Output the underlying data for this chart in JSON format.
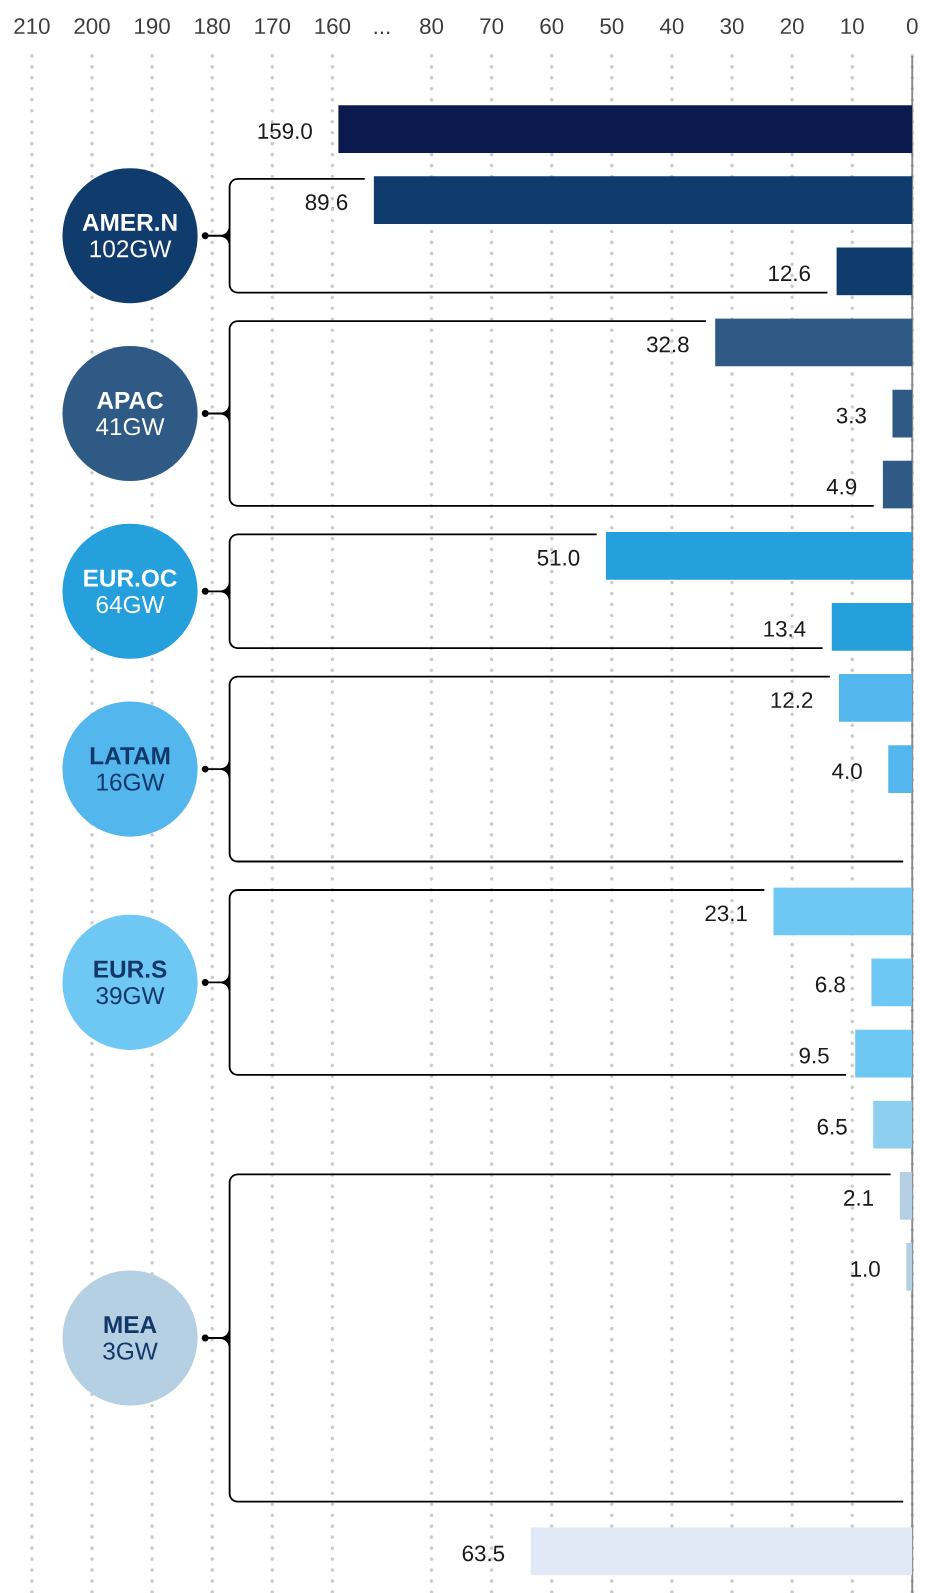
{
  "chart_data": {
    "type": "bar",
    "orientation": "horizontal",
    "categories": [
      null,
      null,
      null,
      null,
      null,
      null,
      null,
      null,
      null,
      null,
      null,
      null,
      null,
      null,
      null,
      null,
      null,
      null,
      null,
      null,
      null
    ],
    "series": [
      {
        "axis": "x2",
        "color": "#0b1a4e",
        "values": [
          159.0,
          null,
          null,
          null,
          null,
          null,
          null,
          null,
          null,
          null,
          null,
          null,
          null,
          null,
          null,
          null,
          null,
          null,
          null,
          null,
          null
        ],
        "value_labels": [
          "159.0",
          null,
          null,
          null,
          null,
          null,
          null,
          null,
          null,
          null,
          null,
          null,
          null,
          null,
          null,
          null,
          null,
          null,
          null,
          null,
          null
        ]
      },
      {
        "color": "#0f3b6d",
        "values": [
          null,
          89.6,
          12.6,
          null,
          null,
          null,
          null,
          null,
          null,
          null,
          null,
          null,
          null,
          null,
          null,
          null,
          null,
          null,
          null,
          null,
          null
        ],
        "value_labels": [
          null,
          "89.6",
          "12.6",
          null,
          null,
          null,
          null,
          null,
          null,
          null,
          null,
          null,
          null,
          null,
          null,
          null,
          null,
          null,
          null,
          null,
          null
        ]
      },
      {
        "color": "#2e5a85",
        "values": [
          null,
          null,
          null,
          32.8,
          3.3,
          4.9,
          null,
          null,
          null,
          null,
          null,
          null,
          null,
          null,
          null,
          null,
          null,
          null,
          null,
          null,
          null
        ],
        "value_labels": [
          null,
          null,
          null,
          "32.8",
          "3.3",
          "4.9",
          null,
          null,
          null,
          null,
          null,
          null,
          null,
          null,
          null,
          null,
          null,
          null,
          null,
          null,
          null
        ]
      },
      {
        "color": "#25a0dd",
        "values": [
          null,
          null,
          null,
          null,
          null,
          null,
          51.0,
          13.4,
          null,
          null,
          null,
          null,
          null,
          null,
          null,
          null,
          null,
          null,
          null,
          null,
          null
        ],
        "value_labels": [
          null,
          null,
          null,
          null,
          null,
          null,
          "51.0",
          "13.4",
          null,
          null,
          null,
          null,
          null,
          null,
          null,
          null,
          null,
          null,
          null,
          null,
          null
        ]
      },
      {
        "color": "#53b6ec",
        "values": [
          null,
          null,
          null,
          null,
          null,
          null,
          null,
          null,
          12.2,
          4.0,
          null,
          null,
          null,
          null,
          null,
          null,
          null,
          null,
          null,
          null,
          null
        ],
        "value_labels": [
          null,
          null,
          null,
          null,
          null,
          null,
          null,
          null,
          "12.2",
          "4.0",
          null,
          null,
          null,
          null,
          null,
          null,
          null,
          null,
          null,
          null,
          null
        ]
      },
      {
        "color": "#6ec8f3",
        "values": [
          null,
          null,
          null,
          null,
          null,
          null,
          null,
          null,
          null,
          null,
          null,
          23.1,
          6.8,
          9.5,
          null,
          null,
          null,
          null,
          null,
          null,
          null
        ],
        "value_labels": [
          null,
          null,
          null,
          null,
          null,
          null,
          null,
          null,
          null,
          null,
          null,
          "23.1",
          "6.8",
          "9.5",
          null,
          null,
          null,
          null,
          null,
          null,
          null
        ]
      },
      {
        "color": "#8ecff0",
        "values": [
          null,
          null,
          null,
          null,
          null,
          null,
          null,
          null,
          null,
          null,
          null,
          null,
          null,
          null,
          6.5,
          null,
          null,
          null,
          null,
          null,
          null
        ],
        "value_labels": [
          null,
          null,
          null,
          null,
          null,
          null,
          null,
          null,
          null,
          null,
          null,
          null,
          null,
          null,
          "6.5",
          null,
          null,
          null,
          null,
          null,
          null
        ]
      },
      {
        "color": "#b5cfe3",
        "values": [
          null,
          null,
          null,
          null,
          null,
          null,
          null,
          null,
          null,
          null,
          null,
          null,
          null,
          null,
          null,
          2.1,
          1.0,
          null,
          null,
          null,
          null
        ],
        "value_labels": [
          null,
          null,
          null,
          null,
          null,
          null,
          null,
          null,
          null,
          null,
          null,
          null,
          null,
          null,
          null,
          "2.1",
          "1.0",
          null,
          null,
          null,
          null
        ]
      },
      {
        "color": "#e1e9f6",
        "values": [
          null,
          null,
          null,
          null,
          null,
          null,
          null,
          null,
          null,
          null,
          null,
          null,
          null,
          null,
          null,
          null,
          null,
          null,
          null,
          null,
          63.5
        ],
        "value_labels": [
          null,
          null,
          null,
          null,
          null,
          null,
          null,
          null,
          null,
          null,
          null,
          null,
          null,
          null,
          null,
          null,
          null,
          null,
          null,
          null,
          "63.5"
        ]
      }
    ],
    "xlim": [
      146.5,
      0
    ],
    "xticks": [
      80,
      70,
      60,
      50,
      40,
      30,
      20,
      10,
      0
    ],
    "x2lim": [
      210,
      63.5
    ],
    "x2ticks": [
      210,
      200,
      190,
      180,
      170,
      160
    ],
    "grid": "x",
    "annotations": [
      "...",
      "**AMER.N** 102GW",
      "**APAC** 41GW",
      "**EUR.OC** 64GW",
      "**LATAM** 16GW",
      "**EUR.S** 39GW",
      "**MEA** 3GW"
    ]
  }
}
